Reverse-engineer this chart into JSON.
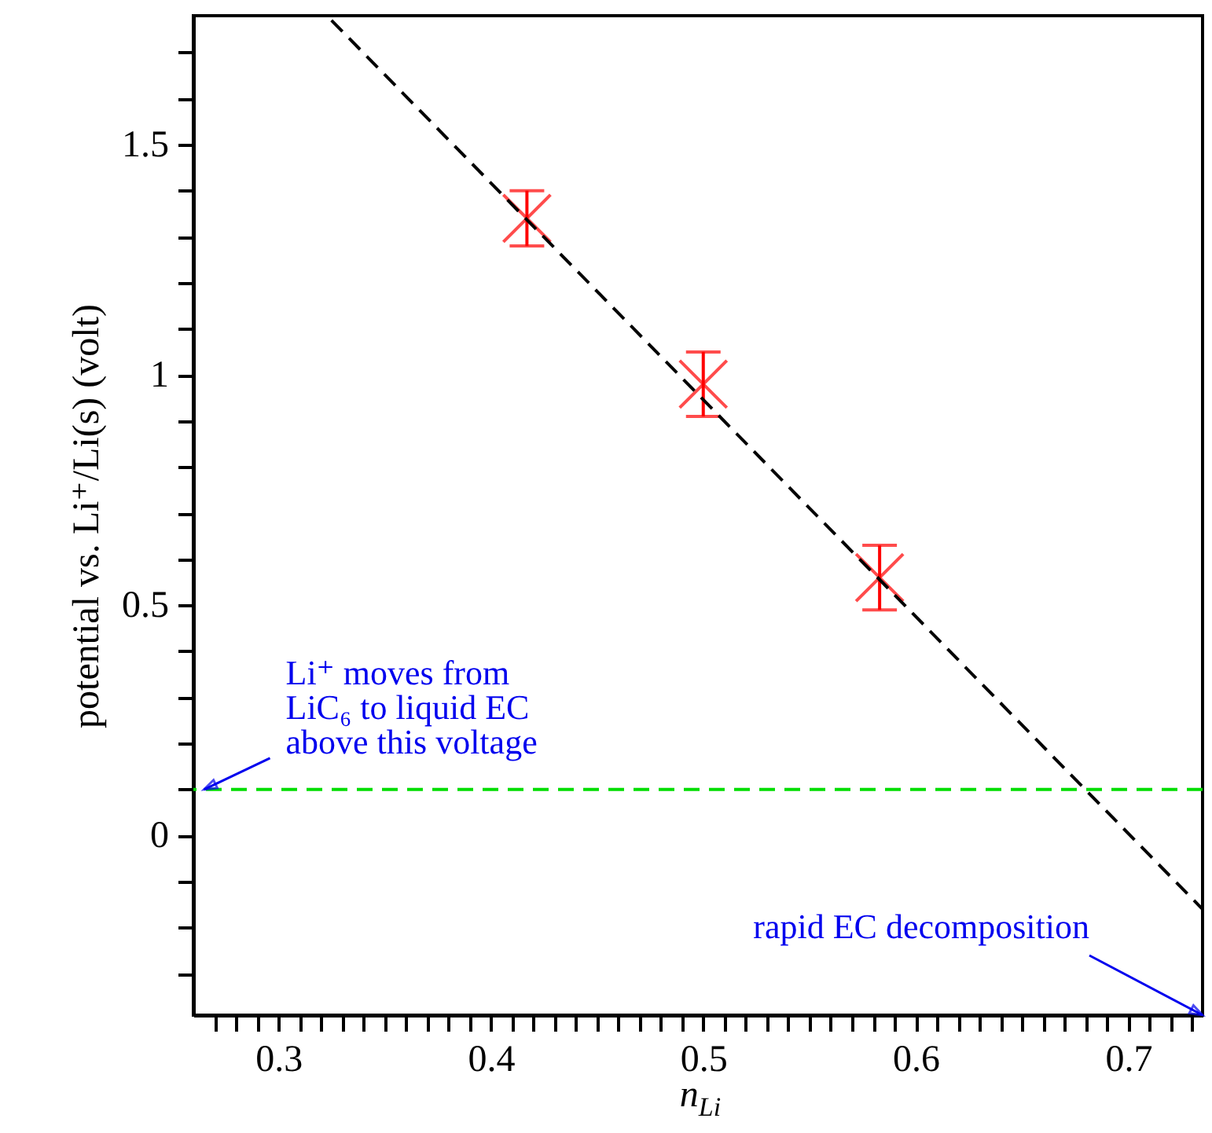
{
  "chart_data": {
    "type": "scatter",
    "xlabel": "n$_{Li}$",
    "ylabel": "potential vs. Li⁺/Li(s) (volt)",
    "xlim": [
      0.26,
      0.735
    ],
    "ylim": [
      -0.39,
      1.78
    ],
    "xticks": [
      {
        "value": 0.27,
        "label": null
      },
      {
        "value": 0.28,
        "label": null
      },
      {
        "value": 0.29,
        "label": null
      },
      0.3,
      {
        "value": 0.31,
        "label": null
      },
      {
        "value": 0.32,
        "label": null
      },
      {
        "value": 0.33,
        "label": null
      },
      {
        "value": 0.34,
        "label": null
      },
      {
        "value": 0.35,
        "label": null
      },
      {
        "value": 0.36,
        "label": null
      },
      {
        "value": 0.37,
        "label": null
      },
      {
        "value": 0.38,
        "label": null
      },
      {
        "value": 0.39,
        "label": null
      },
      0.4,
      {
        "value": 0.41,
        "label": null
      },
      {
        "value": 0.42,
        "label": null
      },
      {
        "value": 0.43,
        "label": null
      },
      {
        "value": 0.44,
        "label": null
      },
      {
        "value": 0.45,
        "label": null
      },
      {
        "value": 0.46,
        "label": null
      },
      {
        "value": 0.47,
        "label": null
      },
      {
        "value": 0.48,
        "label": null
      },
      {
        "value": 0.49,
        "label": null
      },
      0.5,
      {
        "value": 0.51,
        "label": null
      },
      {
        "value": 0.52,
        "label": null
      },
      {
        "value": 0.53,
        "label": null
      },
      {
        "value": 0.54,
        "label": null
      },
      {
        "value": 0.55,
        "label": null
      },
      {
        "value": 0.56,
        "label": null
      },
      {
        "value": 0.57,
        "label": null
      },
      {
        "value": 0.58,
        "label": null
      },
      {
        "value": 0.59,
        "label": null
      },
      0.6,
      {
        "value": 0.61,
        "label": null
      },
      {
        "value": 0.62,
        "label": null
      },
      {
        "value": 0.63,
        "label": null
      },
      {
        "value": 0.64,
        "label": null
      },
      {
        "value": 0.65,
        "label": null
      },
      {
        "value": 0.66,
        "label": null
      },
      {
        "value": 0.67,
        "label": null
      },
      {
        "value": 0.68,
        "label": null
      },
      {
        "value": 0.69,
        "label": null
      },
      0.7,
      {
        "value": 0.71,
        "label": null
      },
      {
        "value": 0.72,
        "label": null
      },
      {
        "value": 0.73,
        "label": null
      }
    ],
    "yticks": [
      {
        "value": -0.3,
        "label": null
      },
      {
        "value": -0.2,
        "label": null
      },
      {
        "value": -0.1,
        "label": null
      },
      0,
      {
        "value": 0.1,
        "label": null
      },
      {
        "value": 0.2,
        "label": null
      },
      {
        "value": 0.3,
        "label": null
      },
      {
        "value": 0.4,
        "label": null
      },
      0.5,
      {
        "value": 0.6,
        "label": null
      },
      {
        "value": 0.7,
        "label": null
      },
      {
        "value": 0.8,
        "label": null
      },
      {
        "value": 0.9,
        "label": null
      },
      1,
      {
        "value": 1.1,
        "label": null
      },
      {
        "value": 1.2,
        "label": null
      },
      {
        "value": 1.3,
        "label": null
      },
      {
        "value": 1.4,
        "label": null
      },
      1.5,
      {
        "value": 1.6,
        "label": null
      },
      {
        "value": 1.7,
        "label": null
      }
    ],
    "series": [
      {
        "color": "#ff0000",
        "marker": "cross",
        "x": [
          0.417,
          0.5,
          0.583
        ],
        "values": [
          1.34,
          0.98,
          0.56
        ],
        "errors": [
          0.06,
          0.07,
          0.07
        ]
      },
      {
        "type": "line",
        "color": "#000000",
        "line_style": "dashed",
        "marker": "none",
        "x": [
          0.325,
          0.735
        ],
        "values": [
          1.77,
          -0.16
        ]
      }
    ],
    "ref_lines": [
      {
        "axis": "y",
        "value": 0.1,
        "color": "#00dd00",
        "line_style": "dashed"
      }
    ],
    "annotations": [
      {
        "text": "Li⁺ moves from\nLiC₆ to liquid EC\nabove this voltage",
        "x": 0.265,
        "y": 0.1
      },
      "rapid EC decomposition"
    ],
    "grid": false
  }
}
